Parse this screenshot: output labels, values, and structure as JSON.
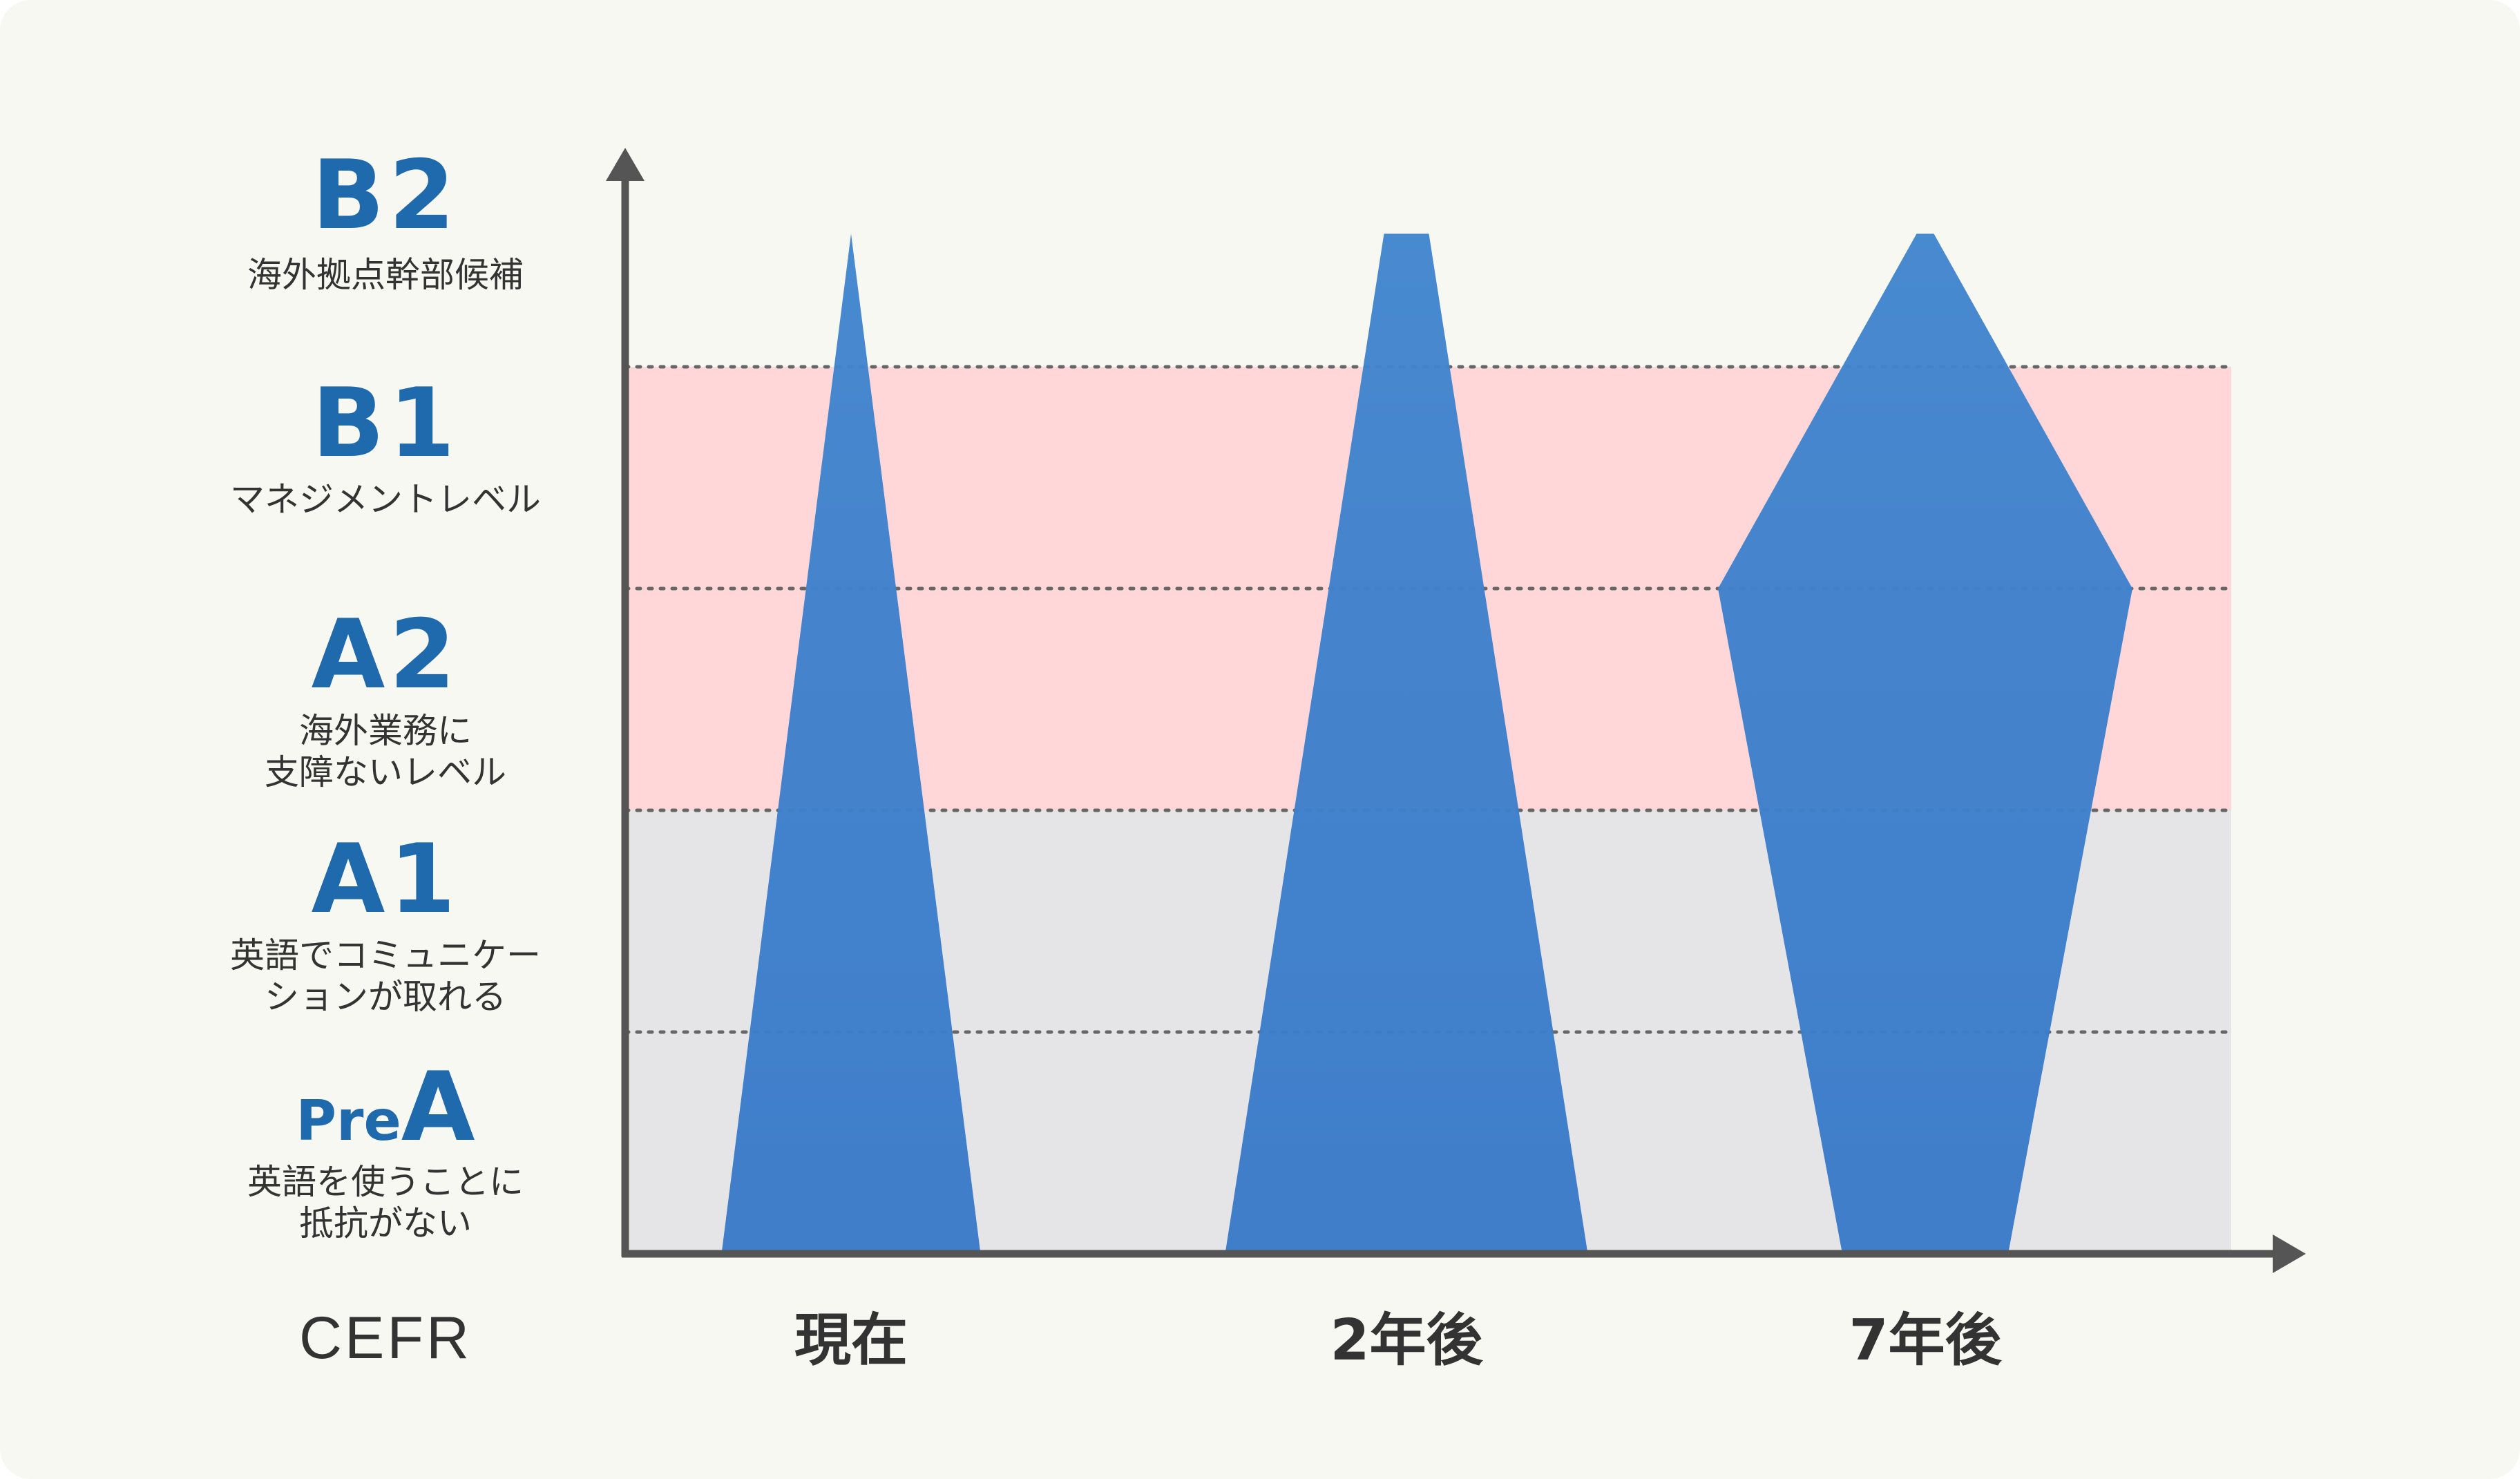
{
  "chart_data": {
    "type": "area",
    "x_axis_title": "CEFR",
    "categories": [
      "現在",
      "2年後",
      "7年後"
    ],
    "levels": [
      {
        "code": "PreA",
        "code_prefix": "Pre",
        "code_main": "A",
        "description": [
          "英語を使うことに",
          "抵抗がない"
        ]
      },
      {
        "code": "A1",
        "description": [
          "英語でコミュニケー",
          "ションが取れる"
        ]
      },
      {
        "code": "A2",
        "description": [
          "海外業務に",
          "支障ないレベル"
        ]
      },
      {
        "code": "B1",
        "description": [
          "マネジメントレベル"
        ]
      },
      {
        "code": "B2",
        "description": [
          "海外拠点幹部候補"
        ]
      }
    ],
    "y_range": [
      0,
      4.6
    ],
    "gridlines": [
      1,
      2,
      3,
      4
    ],
    "bands": [
      {
        "from": 0,
        "to": 2,
        "color": "#e5e5e7"
      },
      {
        "from": 2,
        "to": 4,
        "color": "#ffd7d8"
      }
    ],
    "series": [
      {
        "category": "現在",
        "profile": [
          {
            "level": 0,
            "width": 0.75
          },
          {
            "level": 4.6,
            "width": 0.0
          }
        ]
      },
      {
        "category": "2年後",
        "profile": [
          {
            "level": 0,
            "width": 1.05
          },
          {
            "level": 4.6,
            "width": 0.13
          }
        ]
      },
      {
        "category": "7年後",
        "profile": [
          {
            "level": 0,
            "width": 0.48
          },
          {
            "level": 3.0,
            "width": 1.2
          },
          {
            "level": 4.6,
            "width": 0.05
          }
        ]
      }
    ],
    "colors": {
      "shape_top": "#4286ce",
      "shape_bottom": "#3a7ac9",
      "axis": "#555555",
      "gridline": "#666666",
      "level_code": "#1e6aad",
      "text": "#333333",
      "background": "#f8f8f3"
    },
    "grid": "dotted"
  }
}
